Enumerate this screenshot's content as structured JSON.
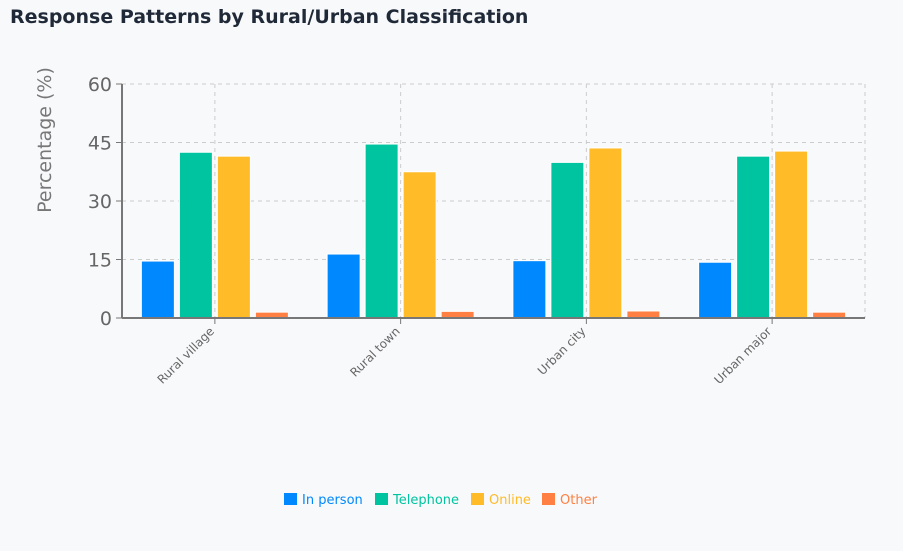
{
  "title": "Response Patterns by Rural/Urban Classification",
  "chart_data": {
    "type": "bar",
    "title": "Response Patterns by Rural/Urban Classification",
    "xlabel": "",
    "ylabel": "Percentage (%)",
    "ylim": [
      0,
      60
    ],
    "yticks": [
      "0",
      "15",
      "30",
      "45",
      "60"
    ],
    "grid": true,
    "legend_position": "bottom",
    "categories": [
      "Rural village",
      "Rural town",
      "Urban city",
      "Urban major"
    ],
    "series": [
      {
        "name": "In person",
        "color": "#0088FE",
        "values": [
          14.6,
          16.4,
          14.7,
          14.3
        ]
      },
      {
        "name": "Telephone",
        "color": "#00C49F",
        "values": [
          42.5,
          44.6,
          39.9,
          41.5
        ]
      },
      {
        "name": "Online",
        "color": "#FFBB28",
        "values": [
          41.5,
          37.5,
          43.6,
          42.8
        ]
      },
      {
        "name": "Other",
        "color": "#FF8042",
        "values": [
          1.5,
          1.7,
          1.8,
          1.5
        ]
      }
    ]
  }
}
